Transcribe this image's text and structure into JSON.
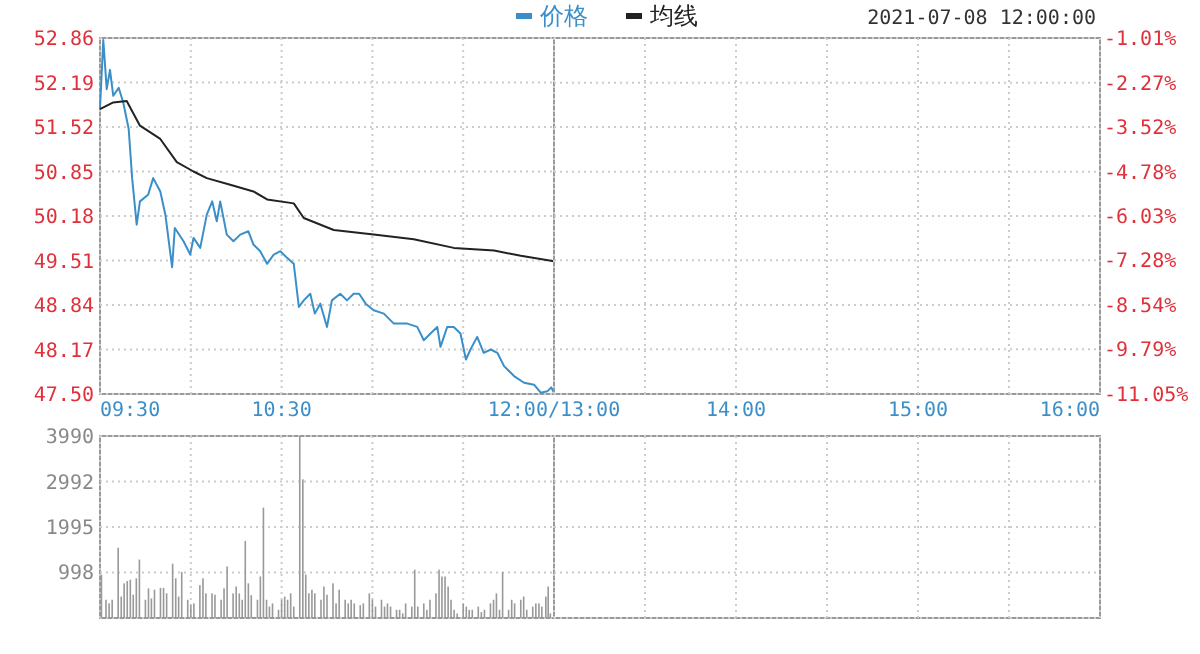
{
  "chart_data": [
    {
      "type": "line",
      "legend": "top",
      "grid": true,
      "xlim": [
        9.5,
        12
      ],
      "xticks": [
        {
          "value": 9.5,
          "label": "09:30"
        },
        {
          "value": 10,
          "label": null
        },
        {
          "value": 10.5,
          "label": "10:30"
        },
        {
          "value": 11,
          "label": null
        },
        {
          "value": 11.5,
          "label": null
        },
        {
          "value": 12,
          "label": "12:00/13:00"
        }
      ],
      "ylim": [
        47.5,
        52.86
      ],
      "yticks": [
        {
          "value": 47.5,
          "label": "47.50"
        },
        {
          "value": 48.17,
          "label": "48.17"
        },
        {
          "value": 48.84,
          "label": "48.84"
        },
        {
          "value": 49.51,
          "label": "49.51"
        },
        {
          "value": 50.18,
          "label": "50.18"
        },
        {
          "value": 50.85,
          "label": "50.85"
        },
        {
          "value": 51.52,
          "label": "51.52"
        },
        {
          "value": 52.19,
          "label": "52.19"
        },
        {
          "value": 52.86,
          "label": "52.86"
        }
      ],
      "series": [
        {
          "name": "价格",
          "color": "#3b8fc9",
          "x": [
            9.5,
            9.518,
            9.537,
            9.555,
            9.573,
            9.603,
            9.628,
            9.658,
            9.677,
            9.702,
            9.72,
            9.765,
            9.793,
            9.832,
            9.86,
            9.897,
            9.912,
            9.96,
            9.997,
            10.015,
            10.052,
            10.088,
            10.118,
            10.143,
            10.162,
            10.198,
            10.235,
            10.272,
            10.317,
            10.345,
            10.382,
            10.42,
            10.457,
            10.493,
            10.53,
            10.567,
            10.595,
            10.622,
            10.658,
            10.683,
            10.713,
            10.75,
            10.777,
            10.823,
            10.86,
            10.897,
            10.927,
            10.963,
            11.007,
            11.063,
            11.118,
            11.192,
            11.247,
            11.283,
            11.32,
            11.357,
            11.375,
            11.412,
            11.448,
            11.485,
            11.515,
            11.54,
            11.577,
            11.613,
            11.652,
            11.688,
            11.725,
            11.78,
            11.835,
            11.89,
            11.927,
            11.963,
            11.985,
            12
          ],
          "values": [
            51.79,
            52.83,
            52.09,
            52.38,
            51.99,
            52.11,
            51.89,
            51.49,
            50.75,
            50.05,
            50.4,
            50.5,
            50.75,
            50.55,
            50.2,
            49.41,
            50,
            49.8,
            49.6,
            49.85,
            49.7,
            50.2,
            50.4,
            50.1,
            50.4,
            49.9,
            49.8,
            49.9,
            49.95,
            49.75,
            49.65,
            49.46,
            49.6,
            49.65,
            49.55,
            49.46,
            48.81,
            48.91,
            49.01,
            48.71,
            48.86,
            48.51,
            48.91,
            49.01,
            48.91,
            49.01,
            49.01,
            48.86,
            48.76,
            48.71,
            48.56,
            48.56,
            48.51,
            48.31,
            48.41,
            48.51,
            48.21,
            48.51,
            48.51,
            48.41,
            48.02,
            48.17,
            48.36,
            48.12,
            48.17,
            48.12,
            47.92,
            47.77,
            47.67,
            47.64,
            47.52,
            47.54,
            47.6,
            47.52
          ]
        },
        {
          "name": "均线",
          "color": "#222222",
          "x": [
            9.5,
            9.573,
            9.647,
            9.72,
            9.832,
            9.923,
            10.015,
            10.088,
            10.217,
            10.345,
            10.42,
            10.567,
            10.622,
            10.787,
            11.007,
            11.228,
            11.448,
            11.67,
            11.817,
            12
          ],
          "values": [
            51.79,
            51.89,
            51.91,
            51.54,
            51.34,
            50.99,
            50.85,
            50.75,
            50.65,
            50.55,
            50.43,
            50.37,
            50.15,
            49.97,
            49.9,
            49.83,
            49.7,
            49.66,
            49.58,
            49.5
          ]
        }
      ]
    },
    {
      "type": "line",
      "subtitle": "2021-07-08 12:00:00",
      "grid": true,
      "y2lim": [
        -11.05,
        -1.01
      ],
      "y2ticks": [
        {
          "value": -11.05,
          "label": "-11.05%"
        },
        {
          "value": -9.79,
          "label": "-9.79%"
        },
        {
          "value": -8.54,
          "label": "-8.54%"
        },
        {
          "value": -7.28,
          "label": "-7.28%"
        },
        {
          "value": -6.03,
          "label": "-6.03%"
        },
        {
          "value": -4.78,
          "label": "-4.78%"
        },
        {
          "value": -3.52,
          "label": "-3.52%"
        },
        {
          "value": -2.27,
          "label": "-2.27%"
        },
        {
          "value": -1.01,
          "label": "-1.01%"
        }
      ],
      "xlim": [
        13,
        16
      ],
      "xticks": [
        {
          "value": 13,
          "label": null
        },
        {
          "value": 13.5,
          "label": null
        },
        {
          "value": 14,
          "label": "14:00"
        },
        {
          "value": 14.5,
          "label": null
        },
        {
          "value": 15,
          "label": "15:00"
        },
        {
          "value": 15.5,
          "label": null
        },
        {
          "value": 16,
          "label": "16:00"
        }
      ],
      "tick_labels": "x"
    },
    {
      "type": "bar",
      "color": "#999999",
      "grid": true,
      "tick_labels": "y",
      "xlim": [
        9.5,
        12
      ],
      "xticks": [
        9.5,
        10,
        10.5,
        11,
        11.5,
        12
      ],
      "ylim": [
        0,
        3990
      ],
      "yticks": [
        {
          "value": 0,
          "label": null
        },
        998,
        1995,
        2992,
        3990
      ],
      "x": [
        9.508,
        9.533,
        9.55,
        9.567,
        9.6,
        9.617,
        9.633,
        9.65,
        9.667,
        9.683,
        9.7,
        9.717,
        9.75,
        9.767,
        9.783,
        9.8,
        9.833,
        9.85,
        9.867,
        9.9,
        9.917,
        9.933,
        9.95,
        9.983,
        10,
        10.017,
        10.05,
        10.067,
        10.083,
        10.117,
        10.133,
        10.167,
        10.183,
        10.2,
        10.233,
        10.25,
        10.267,
        10.283,
        10.3,
        10.317,
        10.333,
        10.367,
        10.383,
        10.4,
        10.417,
        10.433,
        10.45,
        10.483,
        10.5,
        10.517,
        10.533,
        10.55,
        10.567,
        10.6,
        10.617,
        10.633,
        10.65,
        10.667,
        10.683,
        10.717,
        10.733,
        10.75,
        10.783,
        10.8,
        10.817,
        10.85,
        10.867,
        10.883,
        10.9,
        10.933,
        10.95,
        10.983,
        11,
        11.017,
        11.05,
        11.067,
        11.083,
        11.1,
        11.133,
        11.15,
        11.167,
        11.183,
        11.217,
        11.233,
        11.25,
        11.283,
        11.3,
        11.317,
        11.35,
        11.367,
        11.383,
        11.4,
        11.417,
        11.433,
        11.45,
        11.467,
        11.5,
        11.517,
        11.533,
        11.55,
        11.583,
        11.6,
        11.617,
        11.65,
        11.667,
        11.683,
        11.7,
        11.717,
        11.75,
        11.767,
        11.783,
        11.817,
        11.833,
        11.85,
        11.883,
        11.9,
        11.917,
        11.933,
        11.955,
        11.968,
        11.98
      ],
      "values": [
        950,
        400,
        320,
        400,
        1540,
        470,
        760,
        810,
        840,
        510,
        870,
        1280,
        400,
        650,
        430,
        620,
        660,
        660,
        540,
        1190,
        870,
        470,
        1010,
        400,
        280,
        320,
        720,
        870,
        540,
        540,
        510,
        400,
        650,
        1130,
        540,
        690,
        540,
        400,
        1690,
        760,
        500,
        400,
        910,
        2420,
        400,
        250,
        320,
        180,
        400,
        470,
        400,
        540,
        250,
        3990,
        3040,
        950,
        540,
        620,
        540,
        400,
        690,
        510,
        760,
        320,
        620,
        400,
        320,
        400,
        320,
        280,
        320,
        540,
        400,
        250,
        400,
        250,
        320,
        250,
        180,
        180,
        100,
        320,
        250,
        1060,
        250,
        320,
        180,
        400,
        540,
        1060,
        910,
        910,
        690,
        400,
        180,
        100,
        320,
        250,
        180,
        180,
        250,
        130,
        180,
        320,
        400,
        540,
        180,
        1010,
        180,
        400,
        320,
        400,
        470,
        180,
        250,
        320,
        320,
        250,
        470,
        690,
        100
      ]
    },
    {
      "type": "bar",
      "grid": true,
      "tick_labels": false,
      "xlim": [
        13,
        16
      ],
      "xticks": [
        13,
        13.5,
        14,
        14.5,
        15,
        15.5,
        16
      ],
      "ylim": [
        0,
        3990
      ],
      "yticks": [
        {
          "value": 0,
          "label": null
        },
        {
          "value": 998,
          "label": null
        },
        {
          "value": 1995,
          "label": null
        },
        {
          "value": 2992,
          "label": null
        },
        {
          "value": 3990,
          "label": null
        }
      ]
    }
  ]
}
